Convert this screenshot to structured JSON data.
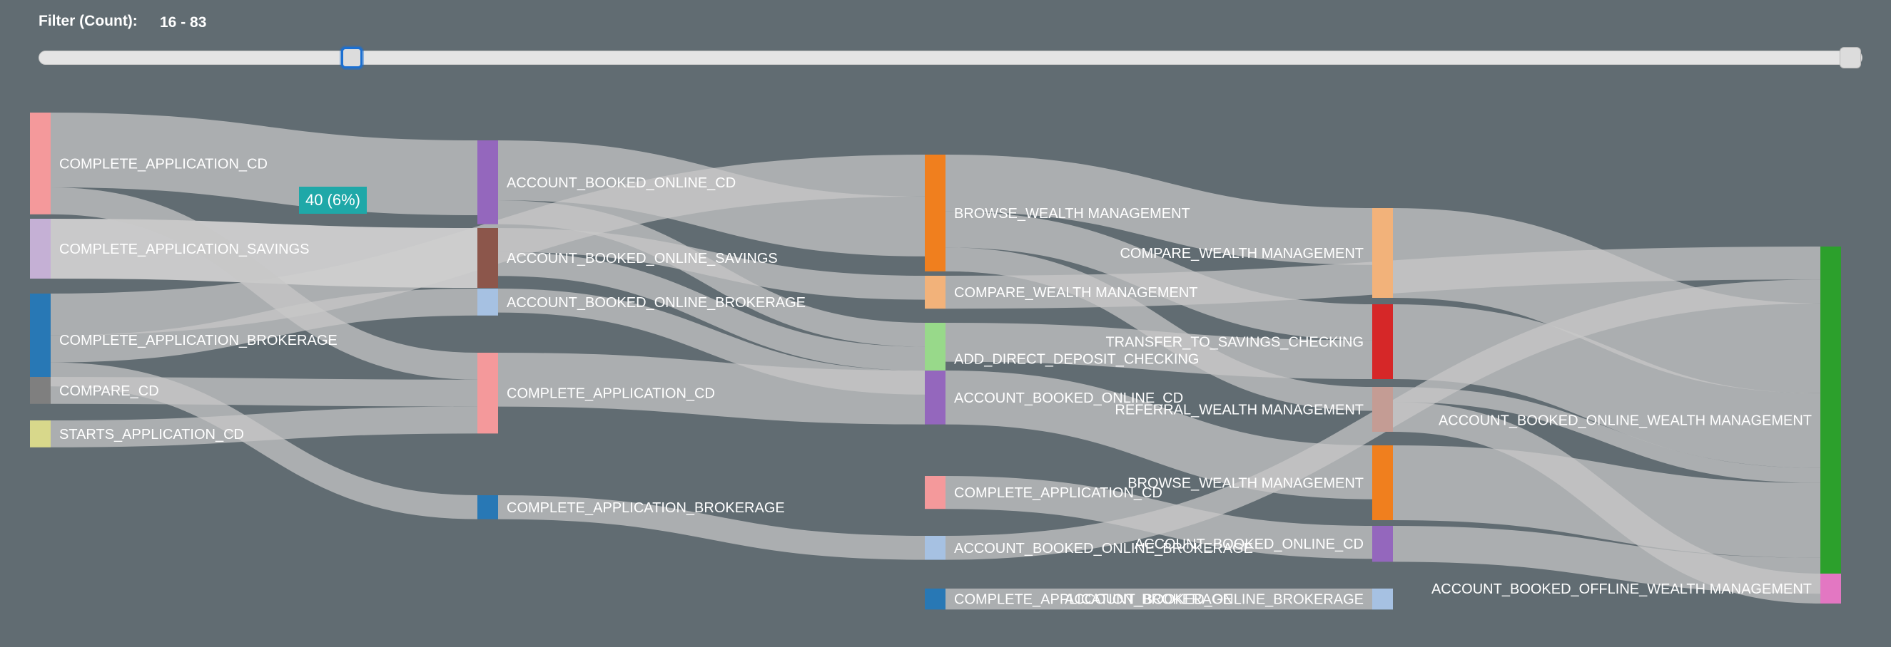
{
  "filter": {
    "label": "Filter (Count):",
    "value": "16 - 83"
  },
  "tooltip": {
    "text": "40 (6%)"
  },
  "chart_data": {
    "type": "sankey",
    "nodes": [
      {
        "id": "c0_app_cd",
        "label": "COMPLETE_APPLICATION_CD",
        "column": 0,
        "color": "#f4999b"
      },
      {
        "id": "c0_app_sav",
        "label": "COMPLETE_APPLICATION_SAVINGS",
        "column": 0,
        "color": "#c5b0d5"
      },
      {
        "id": "c0_app_brk",
        "label": "COMPLETE_APPLICATION_BROKERAGE",
        "column": 0,
        "color": "#2878b5"
      },
      {
        "id": "c0_cmp_cd",
        "label": "COMPARE_CD",
        "column": 0,
        "color": "#7f7f7f"
      },
      {
        "id": "c0_start_cd",
        "label": "STARTS_APPLICATION_CD",
        "column": 0,
        "color": "#d8d88b"
      },
      {
        "id": "c1_abo_cd",
        "label": "ACCOUNT_BOOKED_ONLINE_CD",
        "column": 1,
        "color": "#9467bd"
      },
      {
        "id": "c1_abo_sav",
        "label": "ACCOUNT_BOOKED_ONLINE_SAVINGS",
        "column": 1,
        "color": "#8c564b"
      },
      {
        "id": "c1_abo_brk",
        "label": "ACCOUNT_BOOKED_ONLINE_BROKERAGE",
        "column": 1,
        "color": "#a6c1e2"
      },
      {
        "id": "c1_app_cd",
        "label": "COMPLETE_APPLICATION_CD",
        "column": 1,
        "color": "#f4999b"
      },
      {
        "id": "c1_app_brk",
        "label": "COMPLETE_APPLICATION_BROKERAGE",
        "column": 1,
        "color": "#2878b5"
      },
      {
        "id": "c2_browse",
        "label": "BROWSE_WEALTH MANAGEMENT",
        "column": 2,
        "color": "#f07f1e"
      },
      {
        "id": "c2_compare",
        "label": "COMPARE_WEALTH MANAGEMENT",
        "column": 2,
        "color": "#f2b27a"
      },
      {
        "id": "c2_add_dd",
        "label": "ADD_DIRECT_DEPOSIT_CHECKING",
        "column": 2,
        "color": "#98d98a"
      },
      {
        "id": "c2_abo_cd",
        "label": "ACCOUNT_BOOKED_ONLINE_CD",
        "column": 2,
        "color": "#9467bd"
      },
      {
        "id": "c2_app_cd",
        "label": "COMPLETE_APPLICATION_CD",
        "column": 2,
        "color": "#f4999b"
      },
      {
        "id": "c2_abo_brk",
        "label": "ACCOUNT_BOOKED_ONLINE_BROKERAGE",
        "column": 2,
        "color": "#a6c1e2"
      },
      {
        "id": "c2_app_brk",
        "label": "COMPLETE_APPLICATION_BROKERAGE",
        "column": 2,
        "color": "#2878b5"
      },
      {
        "id": "c3_compare",
        "label": "COMPARE_WEALTH MANAGEMENT",
        "column": 3,
        "color": "#f2b27a"
      },
      {
        "id": "c3_transfer",
        "label": "TRANSFER_TO_SAVINGS_CHECKING",
        "column": 3,
        "color": "#d62728"
      },
      {
        "id": "c3_referral",
        "label": "REFERRAL_WEALTH MANAGEMENT",
        "column": 3,
        "color": "#c49c94"
      },
      {
        "id": "c3_browse",
        "label": "BROWSE_WEALTH MANAGEMENT",
        "column": 3,
        "color": "#f07f1e"
      },
      {
        "id": "c3_abo_cd",
        "label": "ACCOUNT_BOOKED_ONLINE_CD",
        "column": 3,
        "color": "#9467bd"
      },
      {
        "id": "c3_abo_brk",
        "label": "ACCOUNT_BOOKED_ONLINE_BROKERAGE",
        "column": 3,
        "color": "#a6c1e2"
      },
      {
        "id": "c4_wm_online",
        "label": "ACCOUNT_BOOKED_ONLINE_WEALTH MANAGEMENT",
        "column": 4,
        "color": "#2ca02c"
      },
      {
        "id": "c4_wm_offline",
        "label": "ACCOUNT_BOOKED_OFFLINE_WEALTH MANAGEMENT",
        "column": 4,
        "color": "#e377c2"
      }
    ],
    "links": [
      {
        "source": "c0_app_cd",
        "target": "c1_abo_cd",
        "value": 50
      },
      {
        "source": "c0_app_cd",
        "target": "c1_app_cd",
        "value": 18
      },
      {
        "source": "c0_app_sav",
        "target": "c1_abo_sav",
        "value": 40
      },
      {
        "source": "c0_app_brk",
        "target": "c2_browse",
        "value": 28
      },
      {
        "source": "c0_app_brk",
        "target": "c1_abo_brk",
        "value": 18
      },
      {
        "source": "c0_app_brk",
        "target": "c1_app_brk",
        "value": 16
      },
      {
        "source": "c0_cmp_cd",
        "target": "c1_app_cd",
        "value": 18
      },
      {
        "source": "c0_start_cd",
        "target": "c1_app_cd",
        "value": 18
      },
      {
        "source": "c1_abo_cd",
        "target": "c2_browse",
        "value": 40
      },
      {
        "source": "c1_abo_cd",
        "target": "c2_add_dd",
        "value": 16
      },
      {
        "source": "c1_abo_sav",
        "target": "c2_compare",
        "value": 16
      },
      {
        "source": "c1_abo_sav",
        "target": "c2_add_dd",
        "value": 16
      },
      {
        "source": "c1_abo_brk",
        "target": "c2_add_dd",
        "value": 16
      },
      {
        "source": "c1_app_cd",
        "target": "c2_abo_cd",
        "value": 36
      },
      {
        "source": "c1_app_brk",
        "target": "c2_abo_brk",
        "value": 16
      },
      {
        "source": "c2_browse",
        "target": "c3_compare",
        "value": 38
      },
      {
        "source": "c2_browse",
        "target": "c3_referral",
        "value": 16
      },
      {
        "source": "c2_browse",
        "target": "c3_transfer",
        "value": 24
      },
      {
        "source": "c2_compare",
        "target": "c4_wm_online",
        "value": 22
      },
      {
        "source": "c2_add_dd",
        "target": "c3_transfer",
        "value": 26
      },
      {
        "source": "c2_abo_cd",
        "target": "c3_browse",
        "value": 36
      },
      {
        "source": "c2_app_cd",
        "target": "c3_abo_cd",
        "value": 22
      },
      {
        "source": "c2_abo_brk",
        "target": "c4_wm_online",
        "value": 16
      },
      {
        "source": "c2_app_brk",
        "target": "c3_abo_brk",
        "value": 14
      },
      {
        "source": "c3_compare",
        "target": "c4_wm_online",
        "value": 60
      },
      {
        "source": "c3_transfer",
        "target": "c4_wm_online",
        "value": 50
      },
      {
        "source": "c3_referral",
        "target": "c4_wm_offline",
        "value": 20
      },
      {
        "source": "c3_referral",
        "target": "c4_wm_online",
        "value": 10
      },
      {
        "source": "c3_browse",
        "target": "c4_wm_online",
        "value": 50
      },
      {
        "source": "c3_abo_cd",
        "target": "c4_wm_online",
        "value": 24
      }
    ]
  }
}
